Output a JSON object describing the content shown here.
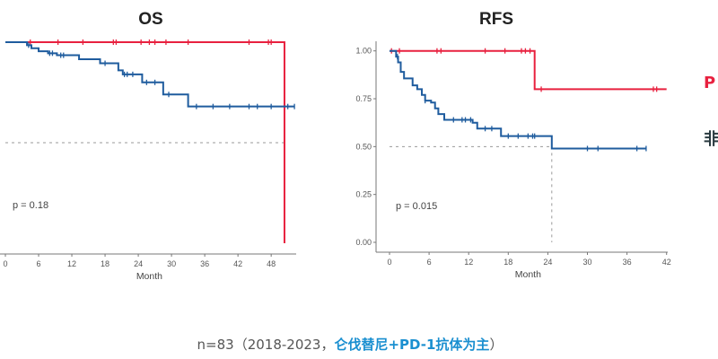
{
  "chart_data": [
    {
      "type": "line",
      "title": "OS",
      "xlabel": "Month",
      "ylabel": "",
      "xticks": [
        "0",
        "6",
        "12",
        "18",
        "24",
        "30",
        "36",
        "42",
        "48"
      ],
      "xlim": [
        0,
        52
      ],
      "ylim": [
        0,
        1
      ],
      "grid": false,
      "annotation": "p = 0.18",
      "median_line": 0.5,
      "series": [
        {
          "name": "red group",
          "color": "#e8213f",
          "steps": [
            [
              0,
              1.0
            ],
            [
              50.4,
              0.0
            ]
          ],
          "end": 50.4,
          "censor": [
            4.5,
            9.5,
            14,
            19.5,
            20,
            24.5,
            26,
            27,
            29,
            33,
            44,
            47.5,
            48
          ]
        },
        {
          "name": "blue group",
          "color": "#1f5c9e",
          "steps": [
            [
              0,
              1.0
            ],
            [
              3.9,
              0.985
            ],
            [
              4.7,
              0.97
            ],
            [
              6,
              0.955
            ],
            [
              7.7,
              0.945
            ],
            [
              9.3,
              0.935
            ],
            [
              13.3,
              0.915
            ],
            [
              17.1,
              0.895
            ],
            [
              20.4,
              0.86
            ],
            [
              21.2,
              0.84
            ],
            [
              24.7,
              0.8
            ],
            [
              28.5,
              0.74
            ],
            [
              33,
              0.68
            ]
          ],
          "end": 52.2,
          "censor": [
            4.2,
            8,
            8.5,
            10,
            10.5,
            18,
            21.5,
            22,
            23,
            25.5,
            27,
            29.5,
            34.5,
            37.5,
            40.5,
            44,
            45.5,
            48,
            51,
            52.2
          ]
        }
      ]
    },
    {
      "type": "line",
      "title": "RFS",
      "xlabel": "Month",
      "ylabel": "",
      "xticks": [
        "0",
        "6",
        "12",
        "18",
        "24",
        "30",
        "36",
        "42"
      ],
      "yticks": [
        "0.00",
        "0.25",
        "0.50",
        "0.75",
        "1.00"
      ],
      "xlim": [
        0,
        42
      ],
      "ylim": [
        0,
        1
      ],
      "grid": false,
      "annotation": "p = 0.015",
      "median_line": 0.5,
      "median_x": 24.6,
      "series": [
        {
          "name": "red group",
          "color": "#e8213f",
          "steps": [
            [
              0,
              1.0
            ],
            [
              22,
              0.8
            ]
          ],
          "end": 42,
          "censor": [
            0.3,
            1.5,
            7.2,
            7.8,
            14.5,
            17.5,
            20,
            20.6,
            21.3,
            23,
            40,
            40.5
          ]
        },
        {
          "name": "blue group",
          "color": "#1f5c9e",
          "steps": [
            [
              0,
              1.0
            ],
            [
              1.0,
              0.97
            ],
            [
              1.3,
              0.94
            ],
            [
              1.7,
              0.89
            ],
            [
              2.2,
              0.856
            ],
            [
              3.5,
              0.82
            ],
            [
              4.2,
              0.8
            ],
            [
              4.9,
              0.77
            ],
            [
              5.4,
              0.74
            ],
            [
              6.3,
              0.73
            ],
            [
              6.9,
              0.7
            ],
            [
              7.4,
              0.67
            ],
            [
              8.3,
              0.64
            ],
            [
              12.6,
              0.625
            ],
            [
              13.3,
              0.594
            ],
            [
              16.9,
              0.555
            ],
            [
              24.6,
              0.49
            ]
          ],
          "end": 38.9,
          "censor": [
            1.2,
            5.4,
            9.7,
            11,
            11.5,
            12.3,
            14.5,
            15.5,
            18,
            19.5,
            21,
            21.7,
            22,
            30,
            31.6,
            37.5,
            38.9
          ]
        }
      ]
    }
  ],
  "legend_fragments": {
    "red": "P",
    "blue": "非"
  },
  "caption": {
    "prefix": "n=83（2018-2023，",
    "highlight": "仑伐替尼+PD-1抗体为主",
    "suffix": "）"
  }
}
